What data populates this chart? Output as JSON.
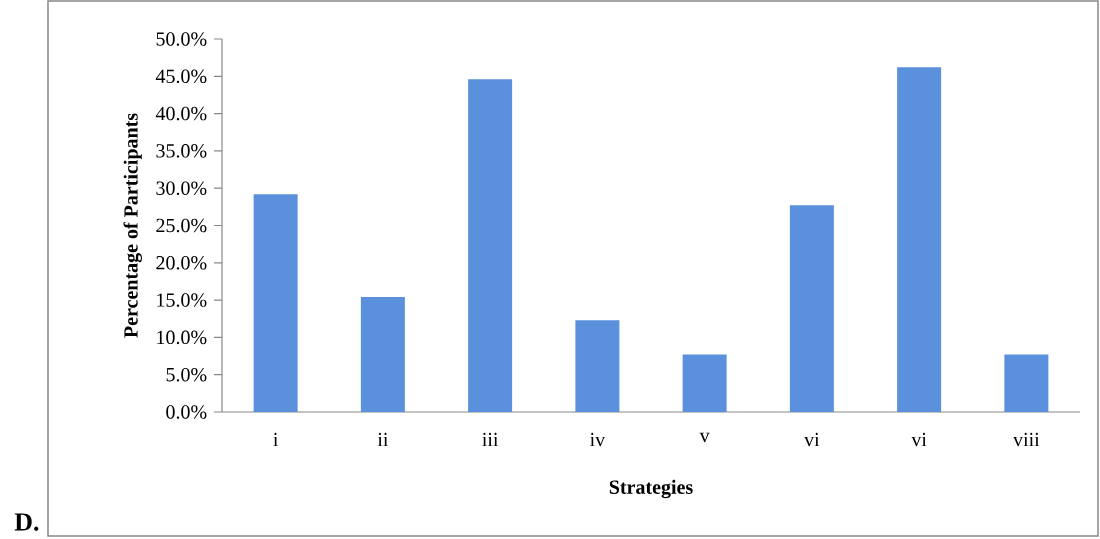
{
  "chart_data": {
    "type": "bar",
    "xlabel": "Strategies",
    "ylabel": "Percentage of Participants",
    "categories": [
      "i",
      "ii",
      "iii",
      "iv",
      "v",
      "vi",
      "vi",
      "viii"
    ],
    "values": [
      29.2,
      15.4,
      44.6,
      12.3,
      7.7,
      27.7,
      46.2,
      7.7
    ],
    "color": "#5a90dc",
    "ylim": [
      0,
      50
    ],
    "yticks": [
      {
        "value": 0,
        "label": "0.0%"
      },
      {
        "value": 5,
        "label": "5.0%"
      },
      {
        "value": 10,
        "label": "10.0%"
      },
      {
        "value": 15,
        "label": "15.0%"
      },
      {
        "value": 20,
        "label": "20.0%"
      },
      {
        "value": 25,
        "label": "25.0%"
      },
      {
        "value": 30,
        "label": "30.0%"
      },
      {
        "value": 35,
        "label": "35.0%"
      },
      {
        "value": 40,
        "label": "40.0%"
      },
      {
        "value": 45,
        "label": "45.0%"
      },
      {
        "value": 50,
        "label": "50.0%"
      }
    ],
    "annotations": [
      "D."
    ]
  }
}
